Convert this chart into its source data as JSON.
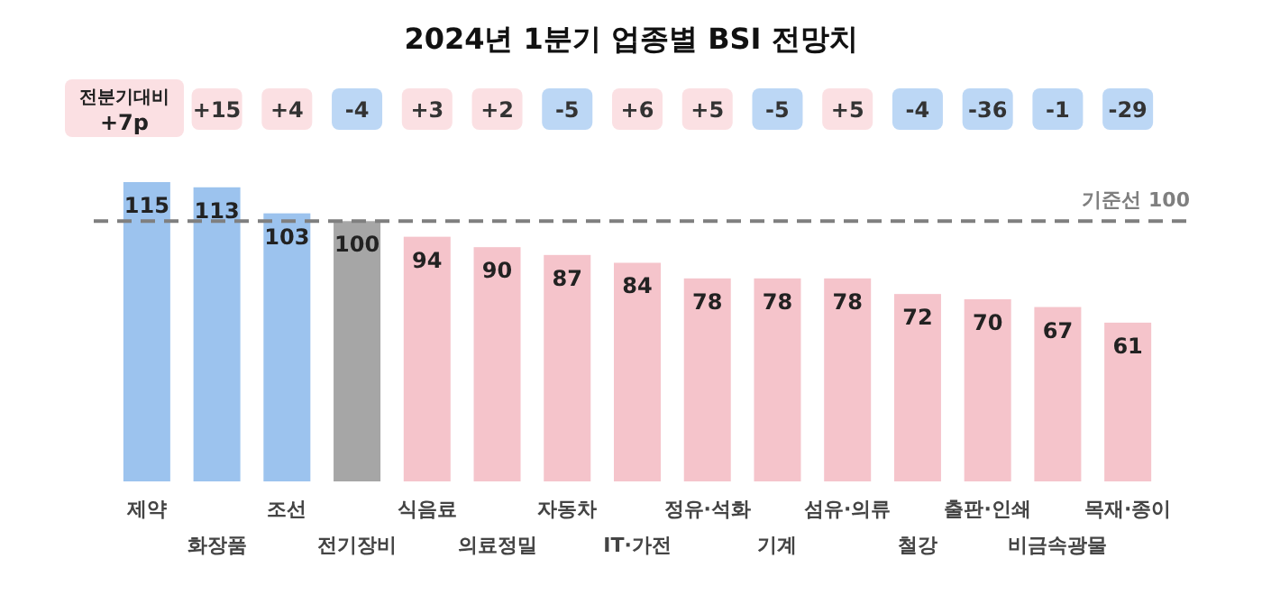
{
  "chart_data": {
    "type": "bar",
    "title": "2024년 1분기 업종별 BSI 전망치",
    "categories": [
      "제약",
      "화장품",
      "조선",
      "전기장비",
      "식음료",
      "의료정밀",
      "자동차",
      "IT·가전",
      "정유·석화",
      "기계",
      "섬유·의류",
      "철강",
      "출판·인쇄",
      "비금속광물",
      "목재·종이"
    ],
    "values": [
      115,
      113,
      103,
      100,
      94,
      90,
      87,
      84,
      78,
      78,
      78,
      72,
      70,
      67,
      61
    ],
    "colors": [
      "#9cc3ee",
      "#9cc3ee",
      "#9cc3ee",
      "#a6a6a6",
      "#f5c4cb",
      "#f5c4cb",
      "#f5c4cb",
      "#f5c4cb",
      "#f5c4cb",
      "#f5c4cb",
      "#f5c4cb",
      "#f5c4cb",
      "#f5c4cb",
      "#f5c4cb",
      "#f5c4cb"
    ],
    "data_labels": true,
    "ref_lines": [
      {
        "axis": "y",
        "value": 100,
        "label": "기준선 100",
        "color": "#7f7f7f",
        "line_style": "dashed"
      }
    ],
    "annotations": [
      "전분기대비 +7p",
      "+15",
      "+4",
      "-4",
      "+3",
      "+2",
      "-5",
      "+6",
      "+5",
      "-5",
      "+5",
      "-4",
      "-36",
      "-1",
      "-29"
    ]
  }
}
